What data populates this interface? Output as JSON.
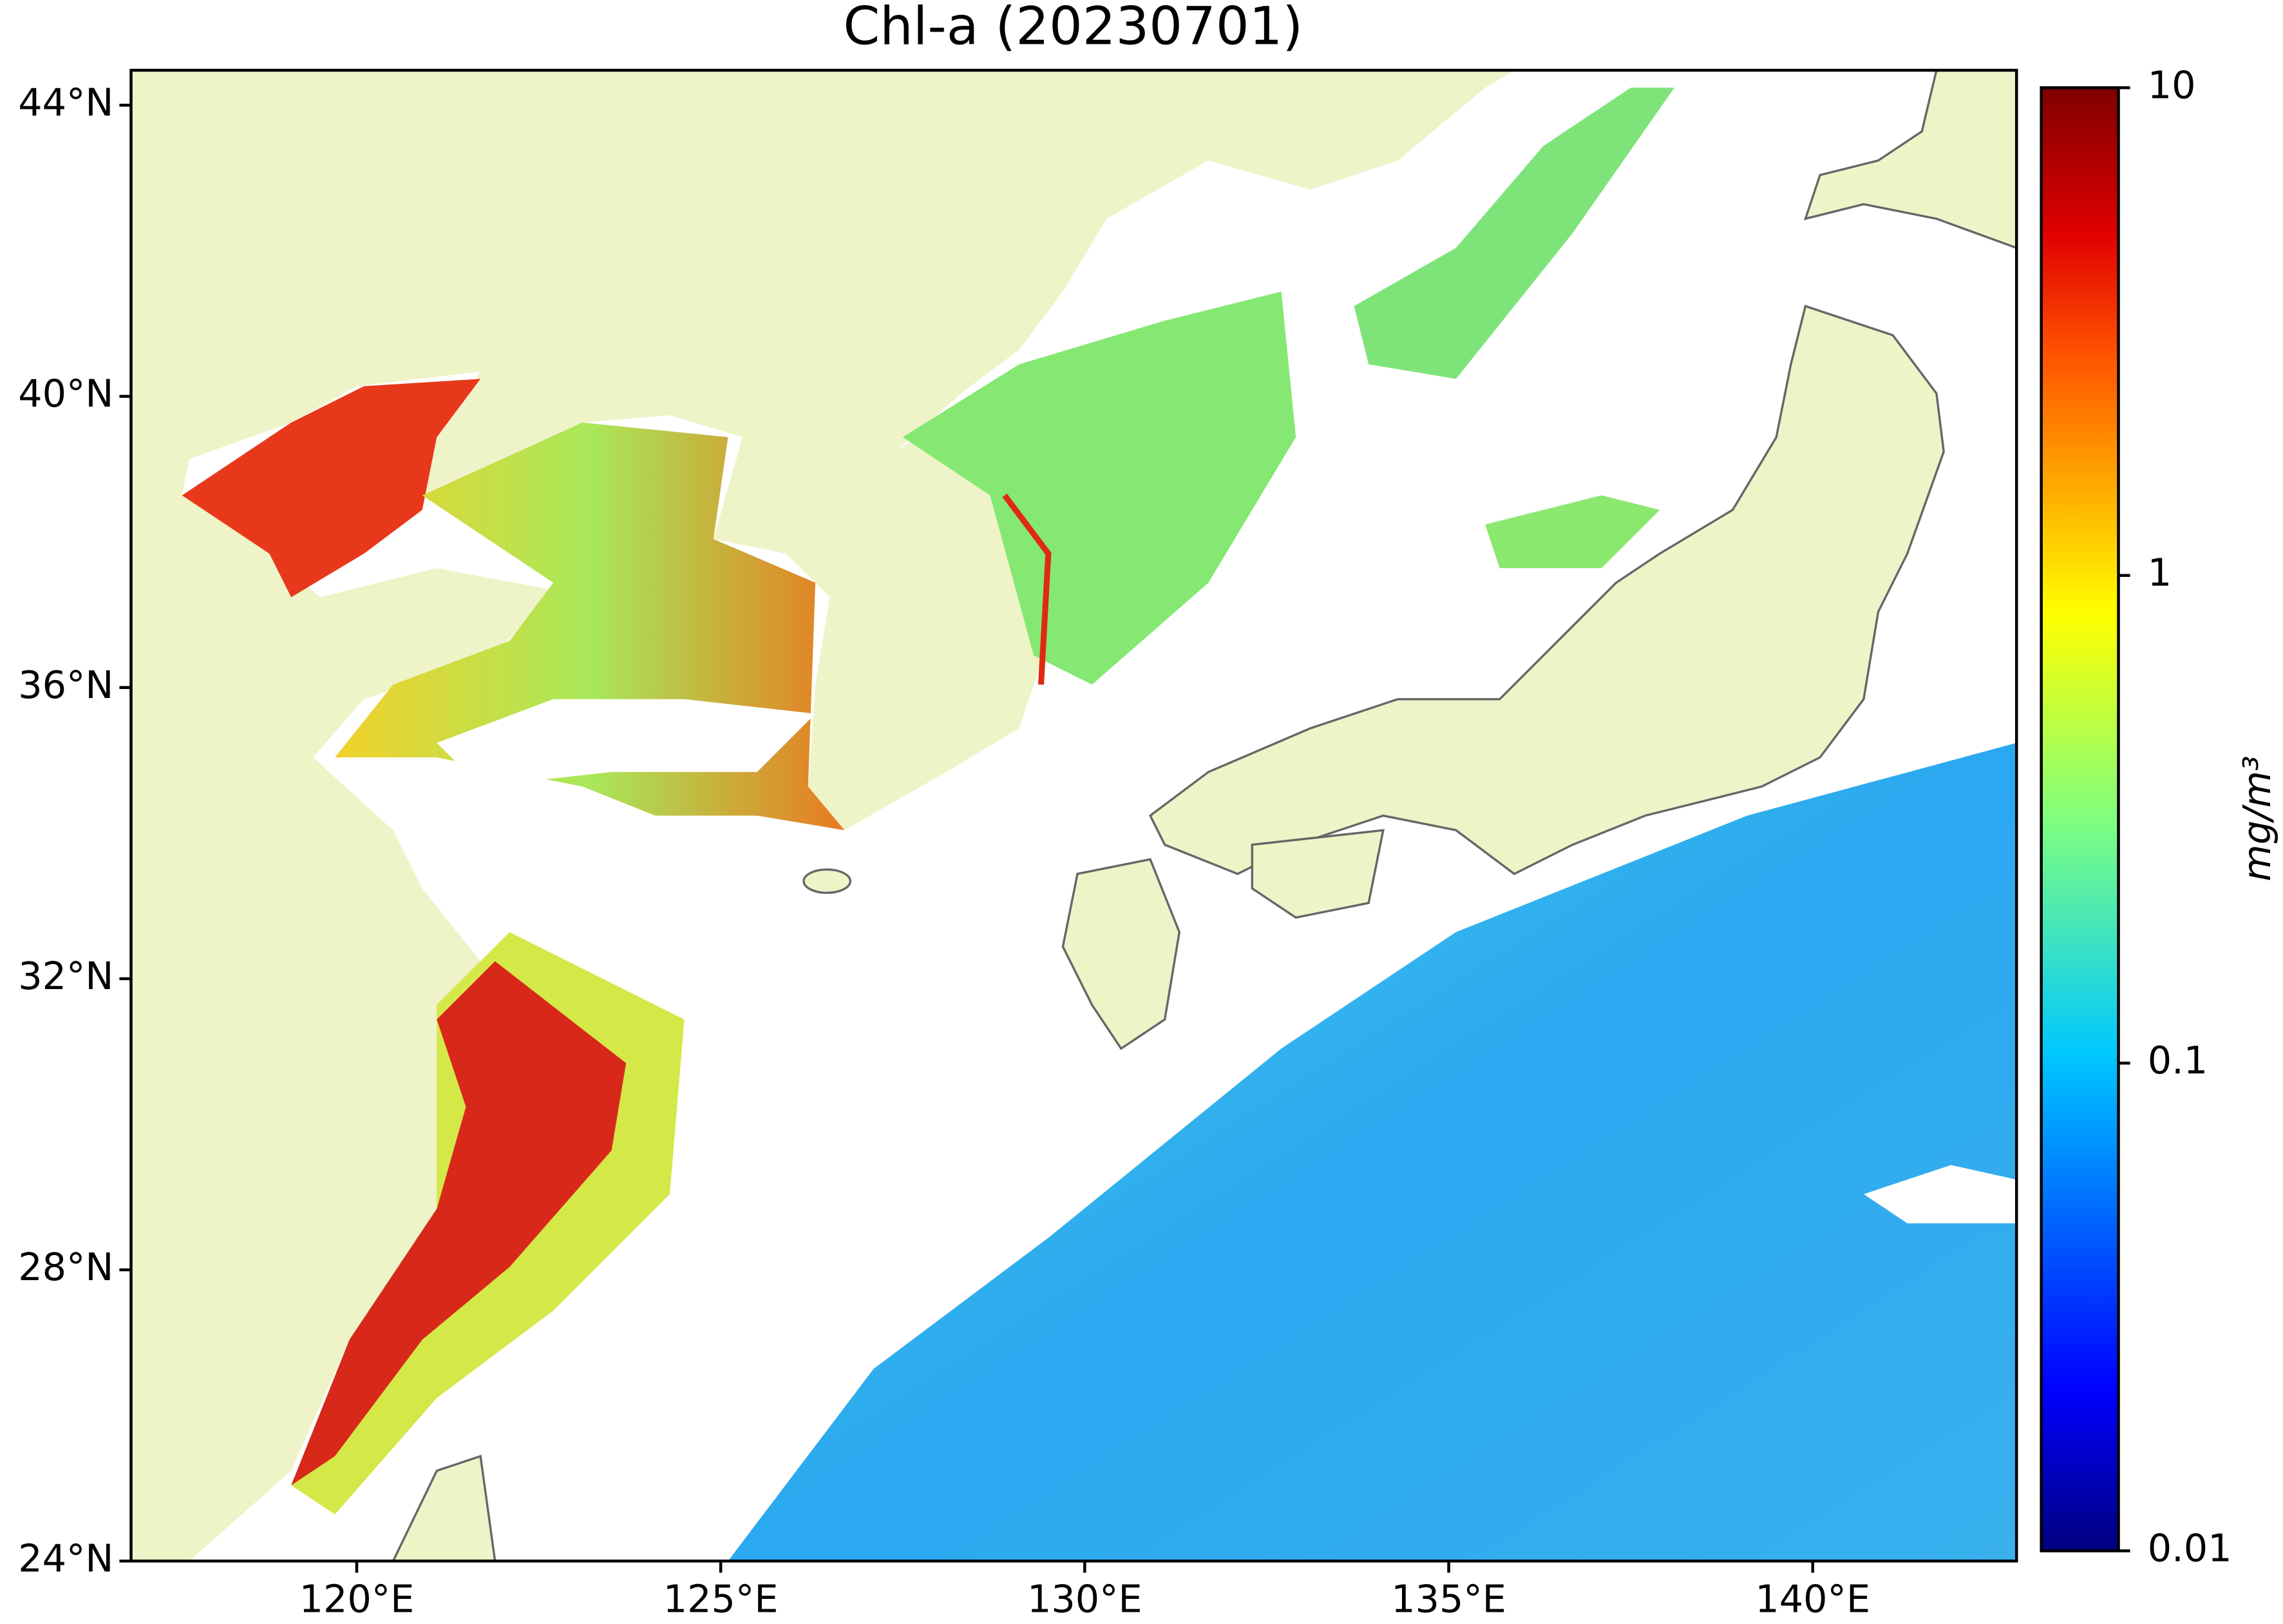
{
  "map": {
    "title": "Chl-a (20230701)",
    "xlim": [
      116.9,
      142.8
    ],
    "ylim": [
      24,
      44.48
    ],
    "xticks": [
      {
        "value": 120,
        "label": "120°E"
      },
      {
        "value": 125,
        "label": "125°E"
      },
      {
        "value": 130,
        "label": "130°E"
      },
      {
        "value": 135,
        "label": "135°E"
      },
      {
        "value": 140,
        "label": "140°E"
      }
    ],
    "yticks": [
      {
        "value": 24,
        "label": "24°N"
      },
      {
        "value": 28,
        "label": "28°N"
      },
      {
        "value": 32,
        "label": "32°N"
      },
      {
        "value": 36,
        "label": "36°N"
      },
      {
        "value": 40,
        "label": "40°N"
      },
      {
        "value": 44,
        "label": "44°N"
      }
    ],
    "colorbar": {
      "label": "mg/m³",
      "log": true,
      "lim": [
        0.01,
        10
      ],
      "ticks": [
        0.01,
        0.1,
        1,
        10
      ]
    }
  }
}
